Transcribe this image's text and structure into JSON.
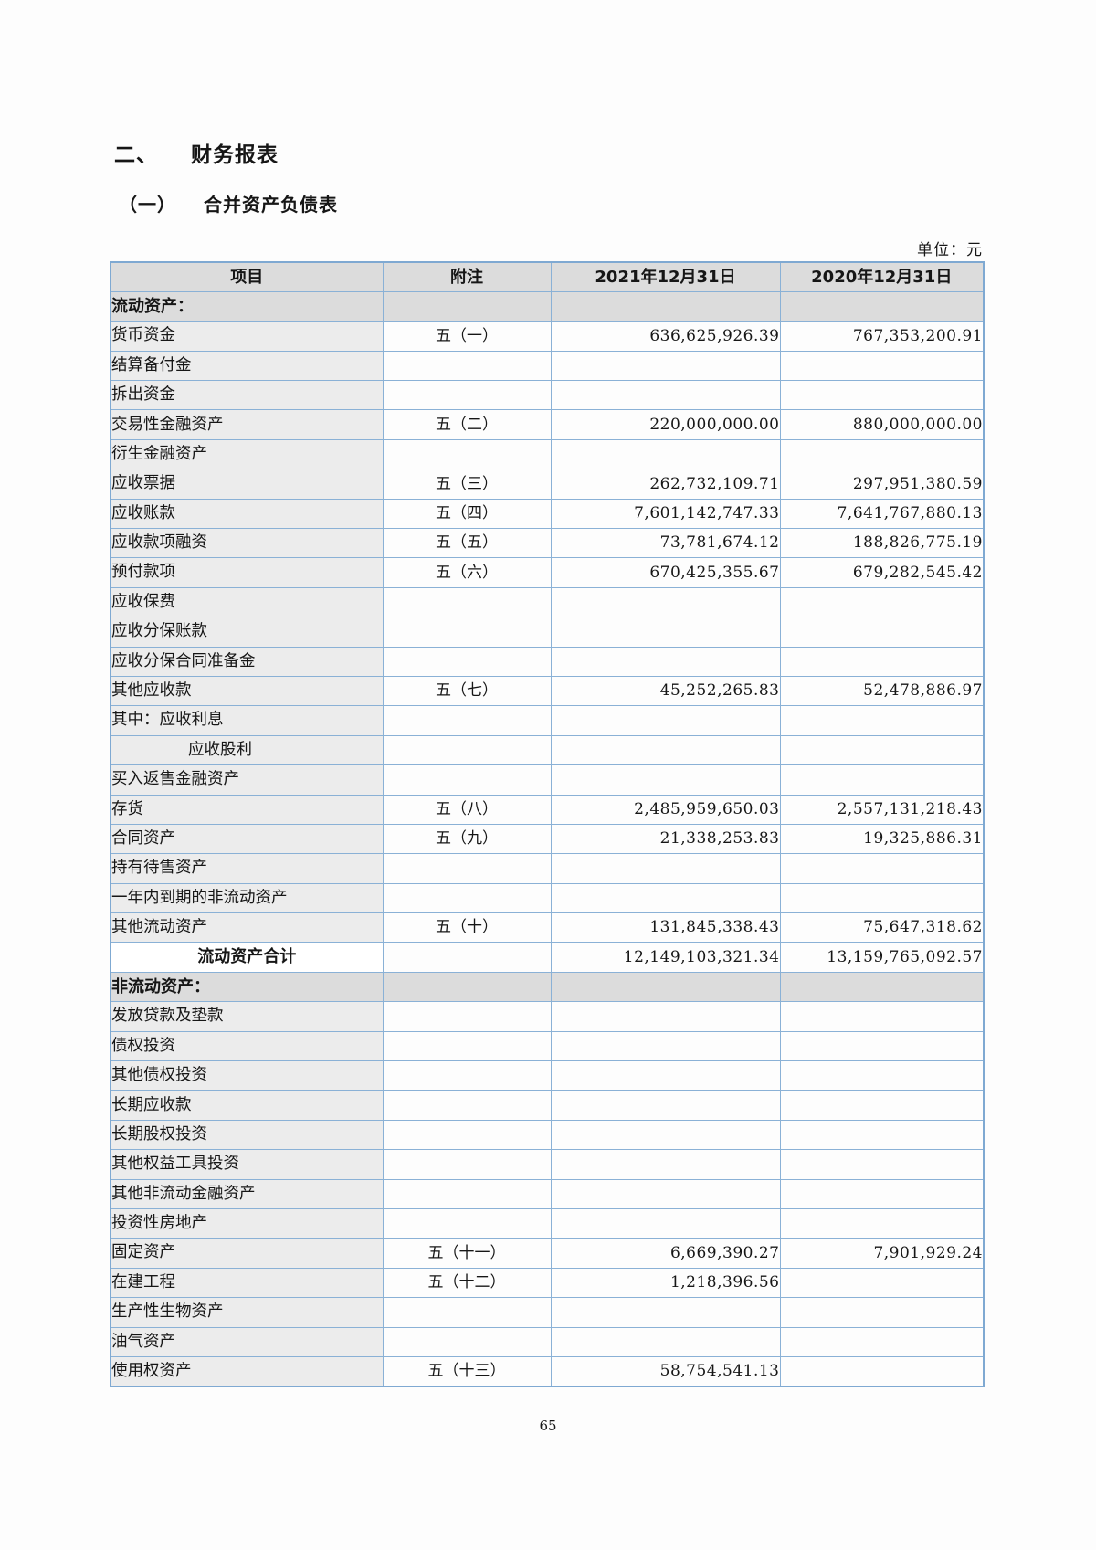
{
  "page": {
    "section_number": "二、",
    "section_title": "财务报表",
    "subsection_number": "（一）",
    "subsection_title": "合并资产负债表",
    "unit_label": "单位：元",
    "page_number": "65"
  },
  "colors": {
    "table_border": "#8ab1d6",
    "header_row_bg": "#dcdcdc",
    "label_column_bg": "#ececec",
    "text": "#161616"
  },
  "table": {
    "headers": [
      "项目",
      "附注",
      "2021年12月31日",
      "2020年12月31日"
    ],
    "rows": [
      {
        "type": "section",
        "label": "流动资产：",
        "note": "",
        "v2021": "",
        "v2020": ""
      },
      {
        "type": "item",
        "label": "货币资金",
        "note": "五（一）",
        "v2021": "636,625,926.39",
        "v2020": "767,353,200.91"
      },
      {
        "type": "item",
        "label": "结算备付金",
        "note": "",
        "v2021": "",
        "v2020": ""
      },
      {
        "type": "item",
        "label": "拆出资金",
        "note": "",
        "v2021": "",
        "v2020": ""
      },
      {
        "type": "item",
        "label": "交易性金融资产",
        "note": "五（二）",
        "v2021": "220,000,000.00",
        "v2020": "880,000,000.00"
      },
      {
        "type": "item",
        "label": "衍生金融资产",
        "note": "",
        "v2021": "",
        "v2020": ""
      },
      {
        "type": "item",
        "label": "应收票据",
        "note": "五（三）",
        "v2021": "262,732,109.71",
        "v2020": "297,951,380.59"
      },
      {
        "type": "item",
        "label": "应收账款",
        "note": "五（四）",
        "v2021": "7,601,142,747.33",
        "v2020": "7,641,767,880.13"
      },
      {
        "type": "item",
        "label": "应收款项融资",
        "note": "五（五）",
        "v2021": "73,781,674.12",
        "v2020": "188,826,775.19"
      },
      {
        "type": "item",
        "label": "预付款项",
        "note": "五（六）",
        "v2021": "670,425,355.67",
        "v2020": "679,282,545.42"
      },
      {
        "type": "item",
        "label": "应收保费",
        "note": "",
        "v2021": "",
        "v2020": ""
      },
      {
        "type": "item",
        "label": "应收分保账款",
        "note": "",
        "v2021": "",
        "v2020": ""
      },
      {
        "type": "item",
        "label": "应收分保合同准备金",
        "note": "",
        "v2021": "",
        "v2020": ""
      },
      {
        "type": "item",
        "label": "其他应收款",
        "note": "五（七）",
        "v2021": "45,252,265.83",
        "v2020": "52,478,886.97"
      },
      {
        "type": "item",
        "label": "其中：应收利息",
        "note": "",
        "v2021": "",
        "v2020": ""
      },
      {
        "type": "indent",
        "label": "应收股利",
        "note": "",
        "v2021": "",
        "v2020": ""
      },
      {
        "type": "item",
        "label": "买入返售金融资产",
        "note": "",
        "v2021": "",
        "v2020": ""
      },
      {
        "type": "item",
        "label": "存货",
        "note": "五（八）",
        "v2021": "2,485,959,650.03",
        "v2020": "2,557,131,218.43"
      },
      {
        "type": "item",
        "label": "合同资产",
        "note": "五（九）",
        "v2021": "21,338,253.83",
        "v2020": "19,325,886.31"
      },
      {
        "type": "item",
        "label": "持有待售资产",
        "note": "",
        "v2021": "",
        "v2020": ""
      },
      {
        "type": "item",
        "label": "一年内到期的非流动资产",
        "note": "",
        "v2021": "",
        "v2020": ""
      },
      {
        "type": "item",
        "label": "其他流动资产",
        "note": "五（十）",
        "v2021": "131,845,338.43",
        "v2020": "75,647,318.62"
      },
      {
        "type": "total",
        "label": "流动资产合计",
        "note": "",
        "v2021": "12,149,103,321.34",
        "v2020": "13,159,765,092.57"
      },
      {
        "type": "section",
        "label": "非流动资产：",
        "note": "",
        "v2021": "",
        "v2020": ""
      },
      {
        "type": "item",
        "label": "发放贷款及垫款",
        "note": "",
        "v2021": "",
        "v2020": ""
      },
      {
        "type": "item",
        "label": "债权投资",
        "note": "",
        "v2021": "",
        "v2020": ""
      },
      {
        "type": "item",
        "label": "其他债权投资",
        "note": "",
        "v2021": "",
        "v2020": ""
      },
      {
        "type": "item",
        "label": "长期应收款",
        "note": "",
        "v2021": "",
        "v2020": ""
      },
      {
        "type": "item",
        "label": "长期股权投资",
        "note": "",
        "v2021": "",
        "v2020": ""
      },
      {
        "type": "item",
        "label": "其他权益工具投资",
        "note": "",
        "v2021": "",
        "v2020": ""
      },
      {
        "type": "item",
        "label": "其他非流动金融资产",
        "note": "",
        "v2021": "",
        "v2020": ""
      },
      {
        "type": "item",
        "label": "投资性房地产",
        "note": "",
        "v2021": "",
        "v2020": ""
      },
      {
        "type": "item",
        "label": "固定资产",
        "note": "五（十一）",
        "v2021": "6,669,390.27",
        "v2020": "7,901,929.24"
      },
      {
        "type": "item",
        "label": "在建工程",
        "note": "五（十二）",
        "v2021": "1,218,396.56",
        "v2020": ""
      },
      {
        "type": "item",
        "label": "生产性生物资产",
        "note": "",
        "v2021": "",
        "v2020": ""
      },
      {
        "type": "item",
        "label": "油气资产",
        "note": "",
        "v2021": "",
        "v2020": ""
      },
      {
        "type": "item",
        "label": "使用权资产",
        "note": "五（十三）",
        "v2021": "58,754,541.13",
        "v2020": ""
      }
    ]
  }
}
